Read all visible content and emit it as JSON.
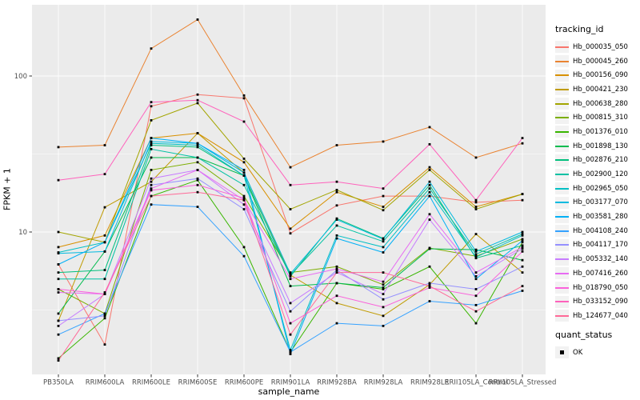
{
  "figure": {
    "y_axis_title": "FPKM + 1",
    "x_axis_title": "sample_name",
    "legend_title": "tracking_id",
    "quant_legend_title": "quant_status",
    "quant_ok_label": "OK"
  },
  "chart_data": {
    "type": "line",
    "title": "",
    "xlabel": "sample_name",
    "ylabel": "FPKM + 1",
    "y_scale": "log10",
    "ylim": [
      1.2,
      290
    ],
    "grid": true,
    "legend_position": "right",
    "legend_title": "tracking_id",
    "panel_background": "#EBEBEB",
    "gridline_color": "#FFFFFF",
    "axis_text_color": "#4D4D4D",
    "point_shape": "black-square",
    "y_ticks": [
      {
        "value": 100,
        "label": "100"
      },
      {
        "value": 10,
        "label": "10"
      }
    ],
    "y_minor_gridlines": [
      31.62,
      3.162
    ],
    "categories": [
      "PB350LA",
      "RRIM600LA",
      "RRIM600LE",
      "RRIM600SE",
      "RRIM600PE",
      "RRIM901LA",
      "RRIM928BA",
      "RRIM928LA",
      "RRIM928LE",
      "RRII105LA_Control",
      "RRII105LA_Stressed"
    ],
    "quant_legend": {
      "title": "quant_status",
      "items": [
        "OK"
      ]
    },
    "series": [
      {
        "name": "Hb_000035_050",
        "color": "#F8766D",
        "values": [
          6.2,
          1.9,
          64,
          76,
          72,
          9.8,
          14.8,
          17,
          17,
          15.5,
          16
        ]
      },
      {
        "name": "Hb_000045_260",
        "color": "#EA8331",
        "values": [
          35,
          36,
          150,
          230,
          75,
          26,
          36,
          38,
          47,
          30,
          37
        ]
      },
      {
        "name": "Hb_000156_090",
        "color": "#D89000",
        "values": [
          8,
          9.5,
          40,
          43,
          28,
          10.5,
          18,
          14.5,
          26,
          14.5,
          17.5
        ]
      },
      {
        "name": "Hb_000421_230",
        "color": "#C09B00",
        "values": [
          2.7,
          14.4,
          21,
          43,
          24,
          5.3,
          3.5,
          2.9,
          4.6,
          9.7,
          5.5
        ]
      },
      {
        "name": "Hb_000638_280",
        "color": "#A3A500",
        "values": [
          10,
          8.6,
          52,
          67,
          29.5,
          14,
          18.6,
          13.8,
          25,
          14,
          17.5
        ]
      },
      {
        "name": "Hb_000815_310",
        "color": "#7CAE00",
        "values": [
          4.3,
          3,
          25,
          28,
          17,
          5.5,
          6,
          4.6,
          7.9,
          7,
          9
        ]
      },
      {
        "name": "Hb_001376_010",
        "color": "#39B600",
        "values": [
          1.55,
          2.8,
          17,
          21.5,
          8,
          1.7,
          4.7,
          4.3,
          6,
          2.6,
          8.6
        ]
      },
      {
        "name": "Hb_001898_130",
        "color": "#00BB4E",
        "values": [
          3,
          7.5,
          30,
          30,
          23,
          4.5,
          4.7,
          4.4,
          7.8,
          7.7,
          6.6
        ]
      },
      {
        "name": "Hb_002876_210",
        "color": "#00BF7D",
        "values": [
          5.5,
          5.7,
          36,
          35,
          23,
          5.2,
          12.2,
          9.1,
          20,
          6.8,
          8.2
        ]
      },
      {
        "name": "Hb_002900_120",
        "color": "#00C1A3",
        "values": [
          5,
          5,
          34,
          30,
          20,
          5.3,
          11,
          8.7,
          19,
          7.2,
          9.7
        ]
      },
      {
        "name": "Hb_002965_050",
        "color": "#00BFC4",
        "values": [
          7.4,
          8.6,
          37,
          36,
          23,
          1.75,
          9.5,
          8,
          18,
          6.9,
          9.5
        ]
      },
      {
        "name": "Hb_003177_070",
        "color": "#00BAE0",
        "values": [
          7.3,
          7.5,
          38,
          37,
          24,
          5.4,
          12,
          9,
          21,
          7.5,
          10
        ]
      },
      {
        "name": "Hb_003581_280",
        "color": "#00B0F6",
        "values": [
          6.2,
          8.6,
          40,
          37,
          25,
          1.65,
          9.1,
          7.4,
          17,
          5,
          8.8
        ]
      },
      {
        "name": "Hb_004108_240",
        "color": "#35A2FF",
        "values": [
          2.2,
          3,
          15,
          14.5,
          7,
          1.7,
          2.6,
          2.5,
          3.6,
          3.4,
          4.2
        ]
      },
      {
        "name": "Hb_004117_170",
        "color": "#9590FF",
        "values": [
          2.7,
          2.9,
          20,
          22,
          14,
          3.1,
          5.7,
          3.7,
          4.7,
          4.3,
          6
        ]
      },
      {
        "name": "Hb_005332_140",
        "color": "#C77CFF",
        "values": [
          2.5,
          4,
          22,
          25,
          15,
          3.5,
          5.5,
          4,
          12,
          5.2,
          7.8
        ]
      },
      {
        "name": "Hb_007416_260",
        "color": "#E76BF3",
        "values": [
          4.1,
          4,
          19,
          25,
          16,
          5,
          5.8,
          4.8,
          13,
          5.5,
          8
        ]
      },
      {
        "name": "Hb_018790_050",
        "color": "#FA62DB",
        "values": [
          4.3,
          4,
          18.5,
          20,
          16.5,
          2.6,
          3.9,
          3.3,
          4.4,
          3.9,
          7.5
        ]
      },
      {
        "name": "Hb_033152_090",
        "color": "#FF62BC",
        "values": [
          21.5,
          23.5,
          68,
          70,
          51,
          20,
          21,
          19,
          36.5,
          16,
          40
        ]
      },
      {
        "name": "Hb_124677_040",
        "color": "#FF6A98",
        "values": [
          1.5,
          4.1,
          17,
          18,
          16,
          2.2,
          5.5,
          5.5,
          4.5,
          3.1,
          4.5
        ]
      }
    ]
  }
}
